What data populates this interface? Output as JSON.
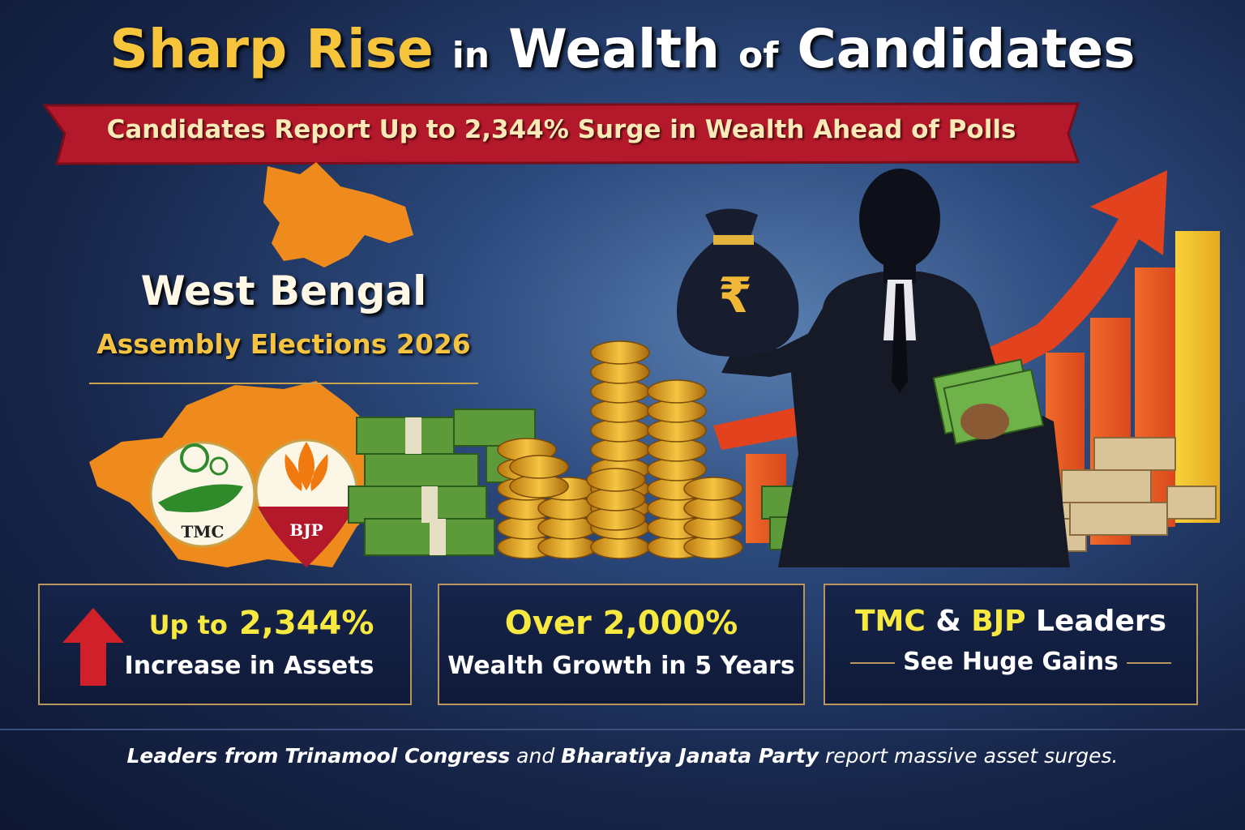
{
  "header": {
    "title": [
      "Sharp Rise",
      "in",
      "Wealth",
      "of",
      "Candidates"
    ],
    "subtitle": "Candidates Report Up to 2,344% Surge in Wealth Ahead of Polls"
  },
  "region": {
    "name": "West Bengal",
    "event": "Assembly Elections 2026"
  },
  "parties": [
    {
      "label": "TMC"
    },
    {
      "label": "BJP"
    }
  ],
  "illustration": {
    "symbol": "₹"
  },
  "cards": [
    {
      "headline": [
        "Up to",
        "2,344%"
      ],
      "caption": "Increase in Assets"
    },
    {
      "headline": [
        "Over",
        "2,000%"
      ],
      "caption": "Wealth Growth in 5 Years"
    },
    {
      "headline": [
        "TMC",
        "&",
        "BJP",
        "Leaders"
      ],
      "caption": "See Huge Gains"
    }
  ],
  "footer": [
    "Leaders from",
    "Trinamool Congress",
    "and",
    "Bharatiya Janata Party",
    "report massive asset surges."
  ]
}
